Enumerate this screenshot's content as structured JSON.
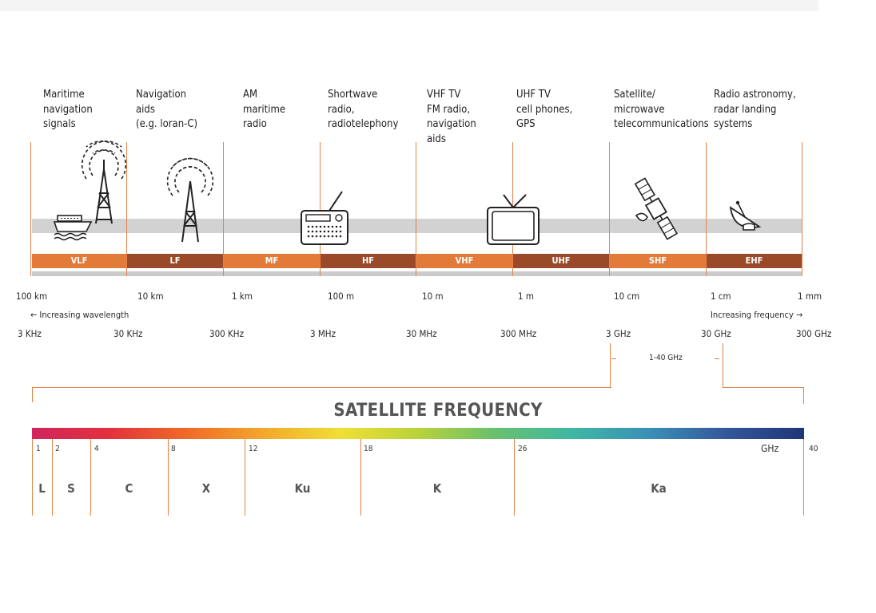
{
  "uses": [
    {
      "text": "Maritime\nnavigation\nsignals"
    },
    {
      "text": "Navigation\naids\n(e.g. loran-C)"
    },
    {
      "text": "AM\nmaritime\nradio"
    },
    {
      "text": "Shortwave\nradio,\nradiotelephony"
    },
    {
      "text": "VHF TV\nFM radio,\nnavigation\naids"
    },
    {
      "text": "UHF TV\ncell phones,\nGPS"
    },
    {
      "text": "Satellite/\nmicrowave\ntelecommunications"
    },
    {
      "text": "Radio astronomy,\nradar landing\nsystems"
    }
  ],
  "bands": [
    "VLF",
    "LF",
    "MF",
    "HF",
    "VHF",
    "UHF",
    "SHF",
    "EHF"
  ],
  "wavelengths": [
    "100 km",
    "10 km",
    "1 km",
    "100 m",
    "10 m",
    "1 m",
    "10 cm",
    "1 cm",
    "1 mm"
  ],
  "frequencies": [
    "3 KHz",
    "30 KHz",
    "300 KHz",
    "3 MHz",
    "30 MHz",
    "300 MHz",
    "3 GHz",
    "30 GHz",
    "300 GHz"
  ],
  "arrows": {
    "wavelength": "← Increasing wavelength",
    "frequency": "Increasing frequency →"
  },
  "sat_range": "1-40 GHz",
  "satellite": {
    "title": "SATELLITE FREQUENCY",
    "unit": "GHz",
    "ticks": [
      "1",
      "2",
      "4",
      "8",
      "12",
      "18",
      "26",
      "40"
    ],
    "bands": [
      {
        "name": "L",
        "from": 1,
        "to": 2
      },
      {
        "name": "S",
        "from": 2,
        "to": 4
      },
      {
        "name": "C",
        "from": 4,
        "to": 8
      },
      {
        "name": "X",
        "from": 8,
        "to": 12
      },
      {
        "name": "Ku",
        "from": 12,
        "to": 18
      },
      {
        "name": "K",
        "from": 18,
        "to": 26
      },
      {
        "name": "Ka",
        "from": 26,
        "to": 40
      }
    ]
  },
  "icons": [
    "ship-icon",
    "radio-tower-icon",
    "radio-tower-icon",
    "radio-receiver-icon",
    "television-icon",
    "satellite-icon",
    "satellite-dish-icon"
  ],
  "colors": {
    "accent_orange": "#e27a39",
    "accent_brown": "#9a4a28",
    "gray_band": "#d2d2d2"
  }
}
